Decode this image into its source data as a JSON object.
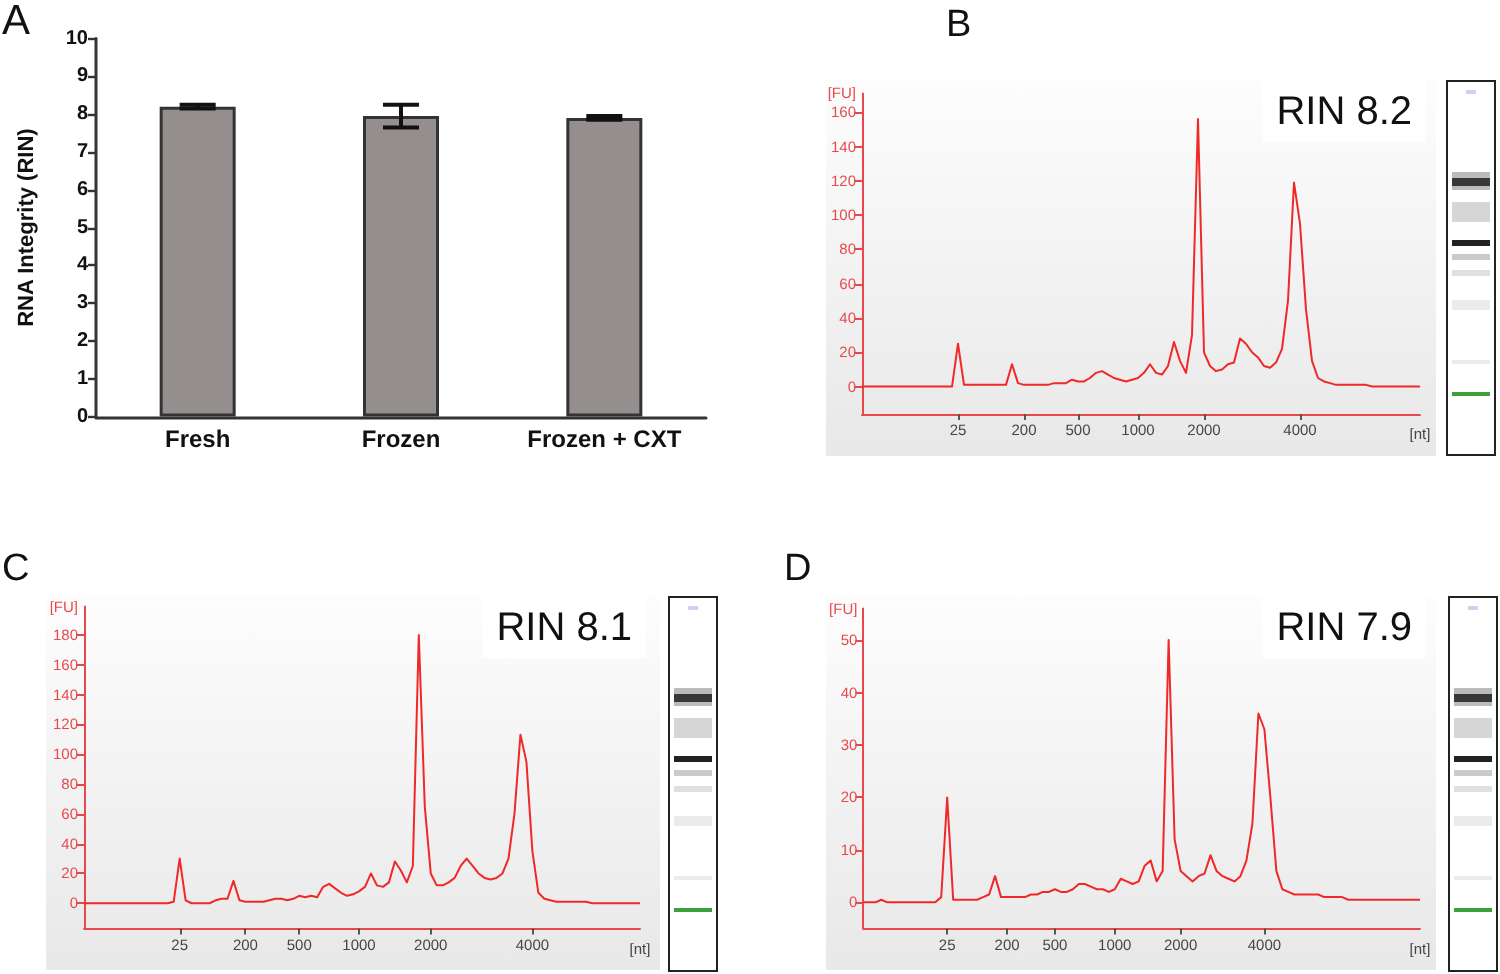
{
  "chart_data": [
    {
      "type": "bar",
      "title": "A",
      "categories": [
        "Fresh",
        "Frozen",
        "Frozen + CXT"
      ],
      "values": [
        8.2,
        7.95,
        7.9
      ],
      "errors": [
        0.05,
        0.3,
        0.05
      ],
      "color": "#958e8e",
      "ylabel": "RNA Integrity (RIN)",
      "ylim": [
        0,
        10
      ],
      "yticks": [
        0,
        1,
        2,
        3,
        4,
        5,
        6,
        7,
        8,
        9,
        10
      ]
    },
    {
      "type": "line",
      "title": "B",
      "xlabel": "[nt]",
      "ylabel": "[FU]",
      "annotations": [
        "RIN 8.2"
      ],
      "color": "#f02828",
      "marker": "none",
      "ylim": [
        -16,
        171
      ],
      "yticks": [
        0,
        20,
        40,
        60,
        80,
        100,
        120,
        140,
        160
      ],
      "categories": [
        null,
        null,
        null,
        null,
        null,
        null,
        null,
        null,
        null,
        null,
        null,
        null,
        null,
        null,
        null,
        null,
        "25",
        null,
        null,
        null,
        null,
        null,
        null,
        null,
        null,
        null,
        null,
        "200",
        null,
        null,
        null,
        null,
        null,
        null,
        null,
        null,
        "500",
        null,
        null,
        null,
        null,
        null,
        null,
        null,
        null,
        null,
        "1000",
        null,
        null,
        null,
        null,
        null,
        null,
        null,
        null,
        null,
        null,
        "2000",
        null,
        null,
        null,
        null,
        null,
        null,
        null,
        null,
        null,
        null,
        null,
        null,
        null,
        null,
        null,
        "4000",
        null,
        null,
        null,
        null,
        null,
        null,
        null,
        null,
        null,
        null,
        null,
        null,
        null,
        null,
        null,
        null,
        null,
        null,
        null,
        null
      ],
      "values": [
        0,
        0,
        0,
        0,
        0,
        0,
        0,
        0,
        0,
        0,
        0,
        0,
        0,
        0,
        0,
        0,
        25,
        1,
        1,
        1,
        1,
        1,
        1,
        1,
        1,
        13,
        2,
        1,
        1,
        1,
        1,
        1,
        2,
        2,
        2,
        4,
        3,
        3,
        5,
        8,
        9,
        7,
        5,
        4,
        3,
        4,
        5,
        8,
        13,
        8,
        7,
        12,
        26,
        15,
        8,
        30,
        156,
        20,
        12,
        9,
        10,
        13,
        14,
        28,
        25,
        20,
        17,
        12,
        11,
        14,
        22,
        50,
        119,
        95,
        45,
        15,
        5,
        3,
        2,
        1,
        1,
        1,
        1,
        1,
        1,
        0,
        0,
        0,
        0,
        0,
        0,
        0,
        0,
        0
      ]
    },
    {
      "type": "line",
      "title": "C",
      "xlabel": "[nt]",
      "ylabel": "[FU]",
      "annotations": [
        "RIN 8.1"
      ],
      "color": "#f02828",
      "marker": "none",
      "ylim": [
        -17,
        199
      ],
      "yticks": [
        0,
        20,
        40,
        60,
        80,
        100,
        120,
        140,
        160,
        180
      ],
      "categories": [
        null,
        null,
        null,
        null,
        null,
        null,
        null,
        null,
        null,
        null,
        null,
        null,
        null,
        null,
        null,
        null,
        "25",
        null,
        null,
        null,
        null,
        null,
        null,
        null,
        null,
        null,
        null,
        "200",
        null,
        null,
        null,
        null,
        null,
        null,
        null,
        null,
        "500",
        null,
        null,
        null,
        null,
        null,
        null,
        null,
        null,
        null,
        "1000",
        null,
        null,
        null,
        null,
        null,
        null,
        null,
        null,
        null,
        null,
        null,
        "2000",
        null,
        null,
        null,
        null,
        null,
        null,
        null,
        null,
        null,
        null,
        null,
        null,
        null,
        null,
        null,
        null,
        "4000",
        null,
        null,
        null,
        null,
        null,
        null,
        null,
        null,
        null,
        null,
        null,
        null,
        null,
        null,
        null,
        null,
        null,
        null
      ],
      "values": [
        0,
        0,
        0,
        0,
        0,
        0,
        0,
        0,
        0,
        0,
        0,
        0,
        0,
        0,
        0,
        1,
        30,
        2,
        0,
        0,
        0,
        0,
        2,
        3,
        3,
        15,
        2,
        1,
        1,
        1,
        1,
        2,
        3,
        3,
        2,
        3,
        5,
        4,
        5,
        4,
        11,
        13,
        10,
        7,
        5,
        6,
        8,
        11,
        20,
        12,
        11,
        14,
        28,
        22,
        14,
        25,
        180,
        65,
        20,
        12,
        12,
        14,
        17,
        25,
        30,
        25,
        20,
        17,
        16,
        17,
        20,
        30,
        60,
        113,
        95,
        35,
        7,
        3,
        2,
        1,
        1,
        1,
        1,
        1,
        1,
        0,
        0,
        0,
        0,
        0,
        0,
        0,
        0,
        0
      ]
    },
    {
      "type": "line",
      "title": "D",
      "xlabel": "[nt]",
      "ylabel": "[FU]",
      "annotations": [
        "RIN 7.9"
      ],
      "color": "#f02828",
      "marker": "none",
      "ylim": [
        -5,
        56
      ],
      "yticks": [
        0,
        10,
        20,
        30,
        40,
        50
      ],
      "categories": [
        null,
        null,
        null,
        null,
        null,
        null,
        null,
        null,
        null,
        null,
        null,
        null,
        null,
        null,
        "25",
        null,
        null,
        null,
        null,
        null,
        null,
        null,
        null,
        null,
        "200",
        null,
        null,
        null,
        null,
        null,
        null,
        null,
        "500",
        null,
        null,
        null,
        null,
        null,
        null,
        null,
        null,
        null,
        "1000",
        null,
        null,
        null,
        null,
        null,
        null,
        null,
        null,
        null,
        null,
        "2000",
        null,
        null,
        null,
        null,
        null,
        null,
        null,
        null,
        null,
        null,
        null,
        null,
        null,
        "4000",
        null,
        null,
        null,
        null,
        null,
        null,
        null,
        null,
        null,
        null,
        null,
        null,
        null,
        null,
        null,
        null,
        null,
        null,
        null,
        null,
        null,
        null,
        null,
        null,
        null,
        null
      ],
      "values": [
        0,
        0,
        0,
        0.5,
        0,
        0,
        0,
        0,
        0,
        0,
        0,
        0,
        0,
        1,
        20,
        0.5,
        0.5,
        0.5,
        0.5,
        0.5,
        1,
        1.5,
        5,
        1,
        1,
        1,
        1,
        1,
        1.5,
        1.5,
        2,
        2,
        2.5,
        2,
        2,
        2.5,
        3.5,
        3.5,
        3,
        2.5,
        2.5,
        2,
        2.5,
        4.5,
        4,
        3.5,
        4,
        7,
        8,
        4,
        6,
        50,
        12,
        6,
        5,
        4,
        5,
        5.5,
        9,
        6,
        5,
        4.5,
        4,
        5,
        8,
        15,
        36,
        33,
        20,
        6,
        2.5,
        2,
        1.5,
        1.5,
        1.5,
        1.5,
        1.5,
        1,
        1,
        1,
        1,
        0.5,
        0.5,
        0.5,
        0.5,
        0.5,
        0.5,
        0.5,
        0.5,
        0.5,
        0.5,
        0.5,
        0.5,
        0.5
      ]
    }
  ]
}
